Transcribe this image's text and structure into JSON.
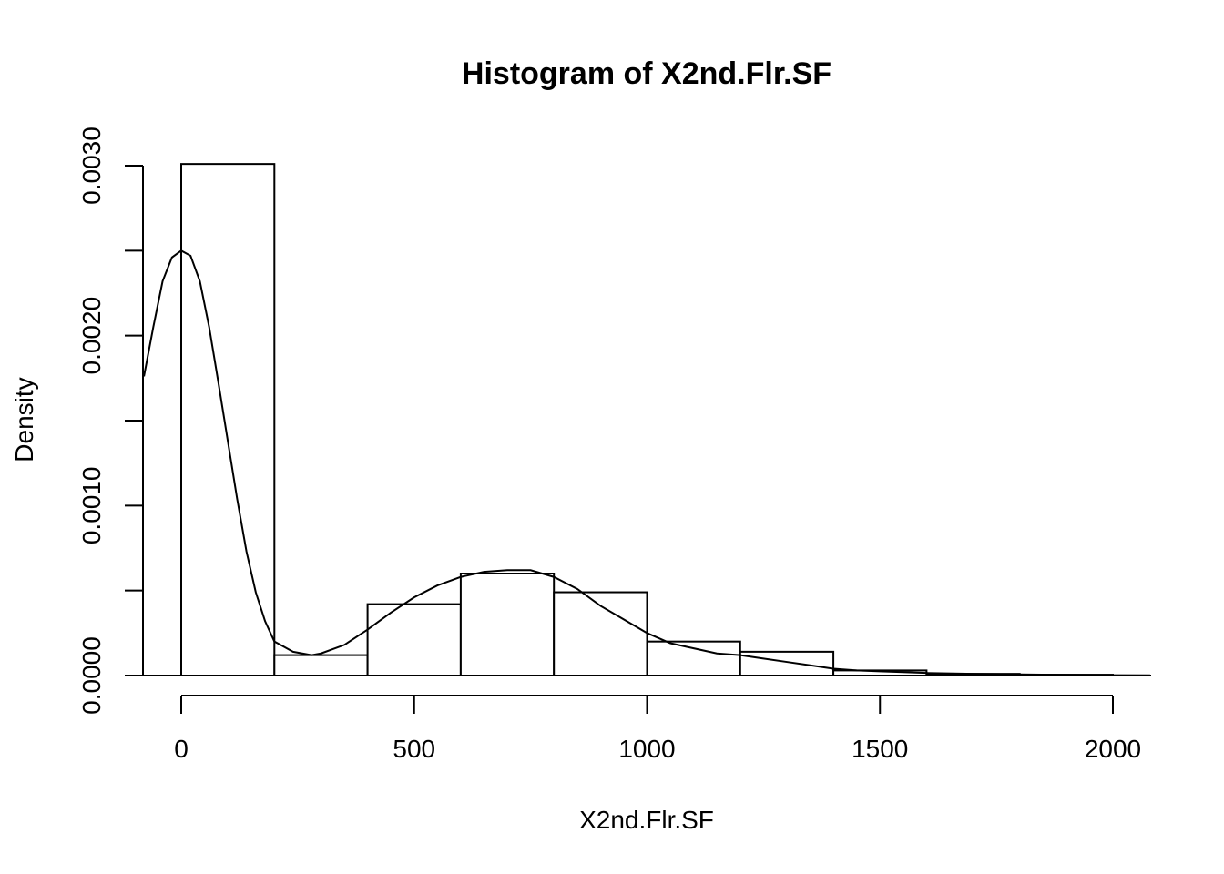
{
  "chart_data": {
    "type": "bar",
    "title": "Histogram of X2nd.Flr.SF",
    "xlabel": "X2nd.Flr.SF",
    "ylabel": "Density",
    "xlim": [
      -80,
      2080
    ],
    "ylim": [
      0,
      0.003
    ],
    "x_ticks": [
      0,
      500,
      1000,
      1500,
      2000
    ],
    "x_tick_labels": [
      "0",
      "500",
      "1000",
      "1500",
      "2000"
    ],
    "y_ticks": [
      0,
      0.0005,
      0.001,
      0.0015,
      0.002,
      0.0025,
      0.003
    ],
    "y_tick_labels": [
      "0.0000",
      "",
      "0.0010",
      "",
      "0.0020",
      "",
      "0.0030"
    ],
    "bins": [
      {
        "start": 0,
        "end": 200,
        "density": 0.00301
      },
      {
        "start": 200,
        "end": 400,
        "density": 0.00012
      },
      {
        "start": 400,
        "end": 600,
        "density": 0.00042
      },
      {
        "start": 600,
        "end": 800,
        "density": 0.0006
      },
      {
        "start": 800,
        "end": 1000,
        "density": 0.00049
      },
      {
        "start": 1000,
        "end": 1200,
        "density": 0.0002
      },
      {
        "start": 1200,
        "end": 1400,
        "density": 0.00014
      },
      {
        "start": 1400,
        "end": 1600,
        "density": 3e-05
      },
      {
        "start": 1600,
        "end": 1800,
        "density": 1e-05
      },
      {
        "start": 1800,
        "end": 2000,
        "density": 5e-06
      }
    ],
    "density_curve": {
      "x": [
        -80,
        -60,
        -40,
        -20,
        0,
        20,
        40,
        60,
        80,
        100,
        120,
        140,
        160,
        180,
        200,
        220,
        240,
        260,
        280,
        300,
        350,
        400,
        450,
        500,
        550,
        600,
        650,
        700,
        750,
        800,
        850,
        900,
        950,
        1000,
        1050,
        1100,
        1150,
        1200,
        1250,
        1300,
        1350,
        1400,
        1450,
        1500,
        1550,
        1600,
        1700,
        1800,
        1900,
        2000,
        2080
      ],
      "y": [
        0.00176,
        0.00205,
        0.00232,
        0.00246,
        0.0025,
        0.00247,
        0.00232,
        0.00205,
        0.00172,
        0.00138,
        0.00104,
        0.00073,
        0.00049,
        0.00032,
        0.0002,
        0.00017,
        0.00014,
        0.00013,
        0.00012,
        0.00013,
        0.00018,
        0.00027,
        0.00037,
        0.00046,
        0.00053,
        0.00058,
        0.00061,
        0.00062,
        0.00062,
        0.00058,
        0.00051,
        0.00041,
        0.00033,
        0.00025,
        0.00019,
        0.00016,
        0.00013,
        0.00012,
        0.0001,
        8e-05,
        6e-05,
        4e-05,
        3e-05,
        2.5e-05,
        2e-05,
        1.5e-05,
        1e-05,
        7e-06,
        4e-06,
        2e-06,
        1e-06
      ]
    }
  }
}
